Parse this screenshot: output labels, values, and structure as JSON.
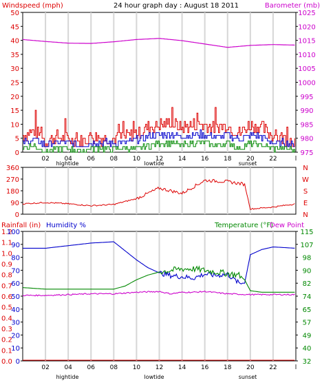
{
  "chart_data": [
    {
      "panel": "wind_barometer",
      "type": "line",
      "title": "24 hour graph day : August 18 2011",
      "left_axis": {
        "label": "Windspeed (mph)",
        "ylim": [
          0,
          50
        ],
        "ticks": [
          "0",
          "5",
          "10",
          "15",
          "20",
          "25",
          "30",
          "35",
          "40",
          "45",
          "50"
        ],
        "color": "#dd0000"
      },
      "right_axis": {
        "label": "Barometer (mb)",
        "ylim": [
          975,
          1025
        ],
        "ticks": [
          "975",
          "980",
          "985",
          "990",
          "995",
          "1000",
          "1005",
          "1010",
          "1015",
          "1020",
          "1025"
        ],
        "color": "#cc00cc"
      },
      "x_ticks": [
        "02",
        "04",
        "06",
        "08",
        "10",
        "12",
        "14",
        "16",
        "18",
        "20",
        "22",
        "l"
      ],
      "markers": {
        "hightide": "hightide",
        "lowtide": "lowtide",
        "sunset": "sunset"
      },
      "grid": true,
      "series": [
        {
          "color": "#cc00cc",
          "axis": "right",
          "x": [
            0,
            2,
            4,
            6,
            8,
            10,
            12,
            14,
            16,
            18,
            20,
            22,
            24
          ],
          "values": [
            1015.3,
            1014.6,
            1014.0,
            1013.9,
            1014.5,
            1015.3,
            1015.7,
            1014.9,
            1013.7,
            1012.5,
            1013.2,
            1013.5,
            1013.3
          ]
        },
        {
          "color": "#dd0000",
          "axis": "left",
          "x": [
            0,
            1,
            2,
            3,
            4,
            5,
            6,
            7,
            8,
            9,
            10,
            11,
            12,
            13,
            14,
            15,
            16,
            17,
            18,
            19,
            20,
            21,
            22,
            23,
            24
          ],
          "values": [
            5,
            7,
            3,
            5,
            4,
            3,
            5,
            4,
            4,
            5,
            6,
            8,
            9,
            10,
            8,
            9,
            9,
            8,
            9,
            6,
            9,
            8,
            5,
            4,
            3
          ]
        },
        {
          "color": "#0000cc",
          "axis": "left",
          "x": [
            0,
            1,
            2,
            3,
            4,
            5,
            6,
            7,
            8,
            9,
            10,
            11,
            12,
            13,
            14,
            15,
            16,
            17,
            18,
            19,
            20,
            21,
            22,
            23,
            24
          ],
          "values": [
            3,
            4,
            2,
            3,
            3,
            2,
            3,
            3,
            3,
            3,
            4,
            5,
            6,
            6,
            5,
            6,
            6,
            5,
            6,
            4,
            6,
            5,
            3,
            3,
            2
          ]
        },
        {
          "color": "#008800",
          "axis": "left",
          "x": [
            0,
            1,
            2,
            3,
            4,
            5,
            6,
            7,
            8,
            9,
            10,
            11,
            12,
            13,
            14,
            15,
            16,
            17,
            18,
            19,
            20,
            21,
            22,
            23,
            24
          ],
          "values": [
            1,
            2,
            0,
            1,
            1,
            0,
            1,
            1,
            1,
            1,
            1,
            2,
            3,
            3,
            2,
            3,
            3,
            2,
            3,
            1,
            3,
            2,
            1,
            1,
            0
          ]
        }
      ]
    },
    {
      "panel": "wind_direction",
      "type": "line",
      "left_axis": {
        "ylim": [
          0,
          360
        ],
        "ticks": [
          "0",
          "90",
          "180",
          "270",
          "360"
        ],
        "color": "#dd0000"
      },
      "right_axis": {
        "ticks": [
          "N",
          "E",
          "S",
          "W",
          "N"
        ],
        "color": "#dd0000"
      },
      "grid": true,
      "series": [
        {
          "color": "#dd0000",
          "x": [
            0,
            2,
            4,
            6,
            8,
            10,
            12,
            14,
            16,
            18,
            19.5,
            20,
            22,
            24
          ],
          "values": [
            80,
            90,
            80,
            65,
            75,
            120,
            200,
            160,
            260,
            250,
            230,
            40,
            55,
            80
          ]
        }
      ]
    },
    {
      "panel": "rain_humidity_temperature",
      "type": "line",
      "labels": {
        "rainfall": "Rainfall (in)",
        "humidity": "Humidity %",
        "temperature": "Temperature (°F)",
        "dewpoint": "Dew Point"
      },
      "left_axis_rain": {
        "ticks": [
          "0.0",
          "0.1",
          "0.2",
          "0.3",
          "0.4",
          "0.5",
          "0.6",
          "0.7",
          "0.8",
          "0.9",
          "1.0",
          "1.1",
          "1.2"
        ],
        "color": "#dd0000"
      },
      "left_axis_humidity": {
        "ticks": [
          "0",
          "10",
          "20",
          "30",
          "40",
          "50",
          "60",
          "70",
          "80",
          "90",
          "100"
        ],
        "color": "#0000cc"
      },
      "right_axis": {
        "ylim": [
          32,
          115
        ],
        "ticks": [
          "32",
          "40",
          "49",
          "57",
          "65",
          "74",
          "82",
          "90",
          "98",
          "107",
          "115"
        ],
        "color": "#008800"
      },
      "x_ticks": [
        "02",
        "04",
        "06",
        "08",
        "10",
        "12",
        "14",
        "16",
        "18",
        "20",
        "22",
        "l"
      ],
      "markers": {
        "hightide": "hightide",
        "lowtide": "lowtide",
        "sunset": "sunset"
      },
      "grid": true,
      "series": [
        {
          "color": "#0000cc",
          "x": [
            0,
            2,
            4,
            6,
            8,
            9,
            10,
            11,
            12,
            13,
            14,
            15,
            16,
            17,
            18,
            19,
            19.5,
            20,
            21,
            22,
            24
          ],
          "values": [
            87,
            87,
            89,
            91,
            92,
            85,
            78,
            72,
            68,
            66,
            65,
            64,
            67,
            66,
            67,
            60,
            60,
            82,
            86,
            88,
            87
          ]
        },
        {
          "color": "#008800",
          "x": [
            0,
            2,
            4,
            6,
            8,
            9,
            10,
            11,
            12,
            13,
            14,
            15,
            16,
            17,
            18,
            19,
            19.5,
            20,
            21,
            22,
            24
          ],
          "values": [
            79,
            78,
            78,
            78,
            78,
            80,
            84,
            87,
            89,
            90,
            91,
            91,
            90,
            89,
            88,
            87,
            84,
            77,
            76,
            76,
            76
          ]
        },
        {
          "color": "#cc00cc",
          "x": [
            0,
            2,
            4,
            6,
            8,
            10,
            12,
            13,
            14,
            15,
            16,
            18,
            20,
            22,
            24
          ],
          "values": [
            74,
            74,
            74.5,
            75,
            75,
            76,
            76.5,
            75,
            76,
            76,
            76.5,
            75,
            74.5,
            74.5,
            74.5
          ]
        },
        {
          "color": "#dd0000",
          "x": [
            0,
            24
          ],
          "values": [
            0,
            0
          ]
        }
      ]
    }
  ]
}
